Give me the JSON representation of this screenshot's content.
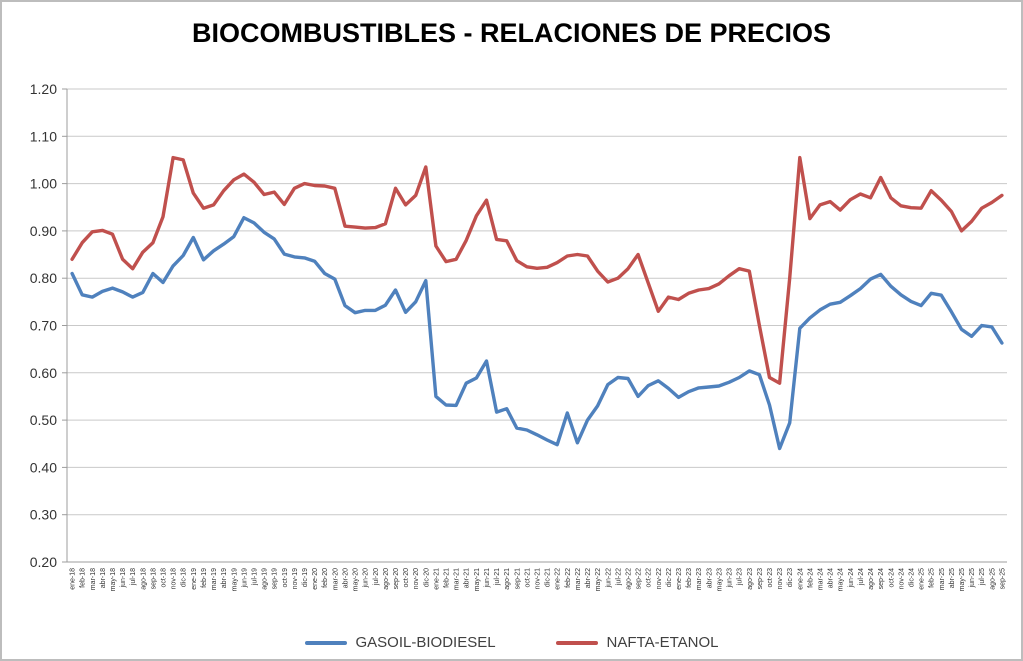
{
  "chart_data": {
    "type": "line",
    "title": "BIOCOMBUSTIBLES - RELACIONES DE PRECIOS",
    "xlabel": "",
    "ylabel": "",
    "ylim": [
      0.2,
      1.2
    ],
    "y_ticks": [
      "1.20",
      "1.10",
      "1.00",
      "0.90",
      "0.80",
      "0.70",
      "0.60",
      "0.50",
      "0.40",
      "0.30",
      "0.20"
    ],
    "grid": "horizontal-only",
    "legend_position": "bottom",
    "categories": [
      "ene-18",
      "feb-18",
      "mar-18",
      "abr-18",
      "may-18",
      "jun-18",
      "jul-18",
      "ago-18",
      "sep-18",
      "oct-18",
      "nov-18",
      "dic-18",
      "ene-19",
      "feb-19",
      "mar-19",
      "abr-19",
      "may-19",
      "jun-19",
      "jul-19",
      "ago-19",
      "sep-19",
      "oct-19",
      "nov-19",
      "dic-19",
      "ene-20",
      "feb-20",
      "mar-20",
      "abr-20",
      "may-20",
      "jun-20",
      "jul-20",
      "ago-20",
      "sep-20",
      "oct-20",
      "nov-20",
      "dic-20",
      "ene-21",
      "feb-21",
      "mar-21",
      "abr-21",
      "may-21",
      "jun-21",
      "jul-21",
      "ago-21",
      "sep-21",
      "oct-21",
      "nov-21",
      "dic-21",
      "ene-22",
      "feb-22",
      "mar-22",
      "abr-22",
      "may-22",
      "jun-22",
      "jul-22",
      "ago-22",
      "sep-22",
      "oct-22",
      "nov-22",
      "dic-22",
      "ene-23",
      "feb-23",
      "mar-23",
      "abr-23",
      "may-23",
      "jun-23",
      "jul-23",
      "ago-23",
      "sep-23",
      "oct-23",
      "nov-23",
      "dic-23",
      "ene-24",
      "feb-24",
      "mar-24",
      "abr-24",
      "may-24",
      "jun-24",
      "jul-24",
      "ago-24",
      "sep-24",
      "oct-24",
      "nov-24",
      "dic-24",
      "ene-25",
      "feb-25",
      "mar-25",
      "abr-25",
      "may-25",
      "jun-25",
      "jul-25",
      "ago-25",
      "sep-25"
    ],
    "series": [
      {
        "name": "GASOIL-BIODIESEL",
        "color": "#4F81BD",
        "values": [
          0.81,
          0.765,
          0.76,
          0.772,
          0.779,
          0.771,
          0.76,
          0.77,
          0.81,
          0.791,
          0.826,
          0.848,
          0.886,
          0.839,
          0.858,
          0.872,
          0.888,
          0.928,
          0.917,
          0.897,
          0.883,
          0.851,
          0.845,
          0.843,
          0.836,
          0.81,
          0.798,
          0.742,
          0.727,
          0.732,
          0.732,
          0.743,
          0.775,
          0.728,
          0.75,
          0.795,
          0.55,
          0.532,
          0.531,
          0.578,
          0.589,
          0.625,
          0.517,
          0.524,
          0.483,
          0.479,
          0.469,
          0.458,
          0.448,
          0.515,
          0.452,
          0.5,
          0.53,
          0.575,
          0.59,
          0.588,
          0.55,
          0.573,
          0.583,
          0.567,
          0.548,
          0.56,
          0.568,
          0.57,
          0.572,
          0.58,
          0.59,
          0.604,
          0.596,
          0.532,
          0.44,
          0.494,
          0.694,
          0.716,
          0.733,
          0.745,
          0.749,
          0.763,
          0.778,
          0.798,
          0.808,
          0.783,
          0.765,
          0.751,
          0.742,
          0.768,
          0.764,
          0.729,
          0.692,
          0.677,
          0.7,
          0.697,
          0.663
        ]
      },
      {
        "name": "NAFTA-ETANOL",
        "color": "#C0504D",
        "values": [
          0.84,
          0.875,
          0.898,
          0.901,
          0.893,
          0.84,
          0.82,
          0.855,
          0.875,
          0.93,
          1.055,
          1.05,
          0.98,
          0.948,
          0.955,
          0.985,
          1.008,
          1.02,
          1.003,
          0.977,
          0.982,
          0.956,
          0.99,
          1.0,
          0.996,
          0.995,
          0.99,
          0.91,
          0.908,
          0.906,
          0.907,
          0.915,
          0.99,
          0.955,
          0.975,
          1.035,
          0.868,
          0.835,
          0.84,
          0.88,
          0.932,
          0.965,
          0.882,
          0.879,
          0.837,
          0.824,
          0.821,
          0.823,
          0.833,
          0.847,
          0.85,
          0.847,
          0.815,
          0.792,
          0.8,
          0.82,
          0.85,
          0.79,
          0.73,
          0.76,
          0.755,
          0.768,
          0.775,
          0.778,
          0.788,
          0.805,
          0.82,
          0.815,
          0.7,
          0.59,
          0.578,
          0.8,
          1.055,
          0.926,
          0.955,
          0.962,
          0.944,
          0.966,
          0.978,
          0.97,
          1.013,
          0.97,
          0.953,
          0.949,
          0.948,
          0.985,
          0.965,
          0.941,
          0.9,
          0.92,
          0.948,
          0.96,
          0.975
        ]
      }
    ],
    "colors": {
      "background": "#FFFFFF",
      "frame_border": "#BDBDBD",
      "gridline": "#C9C9C9",
      "axis_line": "#9C9C9C",
      "title_text": "#000000",
      "tick_label": "#333333",
      "legend_text": "#404040"
    }
  }
}
